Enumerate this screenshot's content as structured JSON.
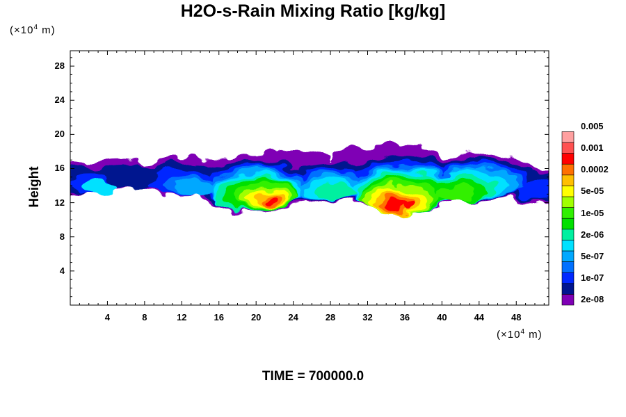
{
  "chart_data": {
    "type": "heatmap",
    "title": "H2O-s-Rain Mixing Ratio [kg/kg]",
    "ylabel": "Height",
    "xunit_prefix": "(×10",
    "xunit_exp": "4",
    "xunit_suffix": " m)",
    "yunit_prefix": "(×10",
    "yunit_exp": "4",
    "yunit_suffix": " m)",
    "xlim": [
      0,
      51.5
    ],
    "ylim": [
      0,
      29.8
    ],
    "xticks": [
      4,
      8,
      12,
      16,
      20,
      24,
      28,
      32,
      36,
      40,
      44,
      48
    ],
    "yticks": [
      4,
      8,
      12,
      16,
      20,
      24,
      28
    ],
    "xtick_labels": [
      "4",
      "8",
      "12",
      "16",
      "20",
      "24",
      "28",
      "32",
      "36",
      "40",
      "44",
      "48"
    ],
    "ytick_labels": [
      "4",
      "8",
      "12",
      "16",
      "20",
      "24",
      "28"
    ],
    "time_label": "TIME = 700000.0",
    "colorbar": {
      "colors": [
        "#7f00b5",
        "#00158f",
        "#0028ff",
        "#0070ff",
        "#00a8ff",
        "#00e1ff",
        "#00f0a0",
        "#00e000",
        "#30f000",
        "#a0ff00",
        "#ffff00",
        "#ffbf00",
        "#ff7000",
        "#ff0000",
        "#ff5050",
        "#ffa0a0"
      ],
      "labels": [
        "2e-08",
        "1e-07",
        "5e-07",
        "2e-06",
        "1e-05",
        "5e-05",
        "0.0002",
        "0.001",
        "0.005"
      ]
    },
    "cloud_layer": {
      "base_height": 10.5,
      "top_height": 18.5,
      "max_level_regions": [
        {
          "x": 21.5,
          "y": 12.3,
          "level": 13
        },
        {
          "x": 35,
          "y": 11.8,
          "level": 13
        },
        {
          "x": 42,
          "y": 13,
          "level": 8
        },
        {
          "x": 14,
          "y": 13.5,
          "level": 7
        }
      ]
    }
  }
}
